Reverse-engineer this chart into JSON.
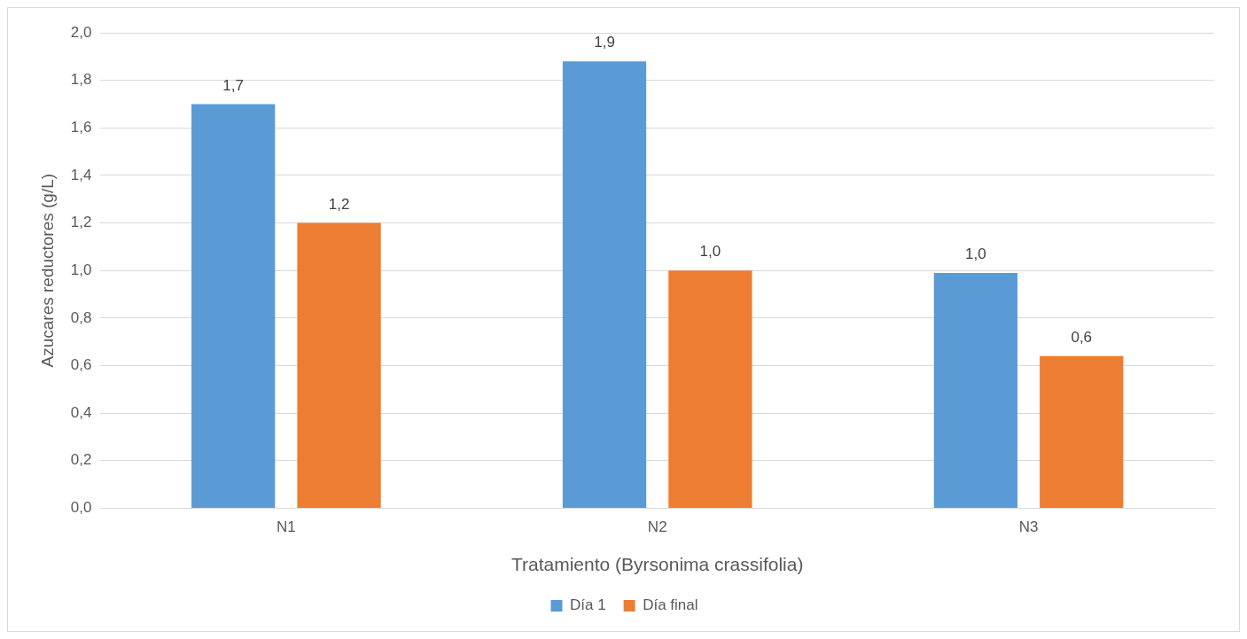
{
  "chart_data": {
    "type": "bar",
    "xlabel": "Tratamiento (Byrsonima crassifolia)",
    "ylabel": "Azucares reductores (g/L)",
    "categories": [
      "N1",
      "N2",
      "N3"
    ],
    "series": [
      {
        "name": "Día 1",
        "color": "#5b9bd5",
        "values": [
          1.7,
          1.88,
          0.99
        ],
        "value_labels": [
          "1,7",
          "1,9",
          "1,0"
        ]
      },
      {
        "name": "Día final",
        "color": "#ed7d31",
        "values": [
          1.2,
          1.0,
          0.64
        ],
        "value_labels": [
          "1,2",
          "1,0",
          "0,6"
        ]
      }
    ],
    "ylim": [
      0,
      2
    ],
    "yticks": [
      {
        "value": 0,
        "label": "0,0"
      },
      {
        "value": 0.2,
        "label": "0,2"
      },
      {
        "value": 0.4,
        "label": "0,4"
      },
      {
        "value": 0.6,
        "label": "0,6"
      },
      {
        "value": 0.8,
        "label": "0,8"
      },
      {
        "value": 1.0,
        "label": "1,0"
      },
      {
        "value": 1.2,
        "label": "1,2"
      },
      {
        "value": 1.4,
        "label": "1,4"
      },
      {
        "value": 1.6,
        "label": "1,6"
      },
      {
        "value": 1.8,
        "label": "1,8"
      },
      {
        "value": 2.0,
        "label": "2,0"
      }
    ],
    "grid": "y",
    "legend": "bottom"
  }
}
